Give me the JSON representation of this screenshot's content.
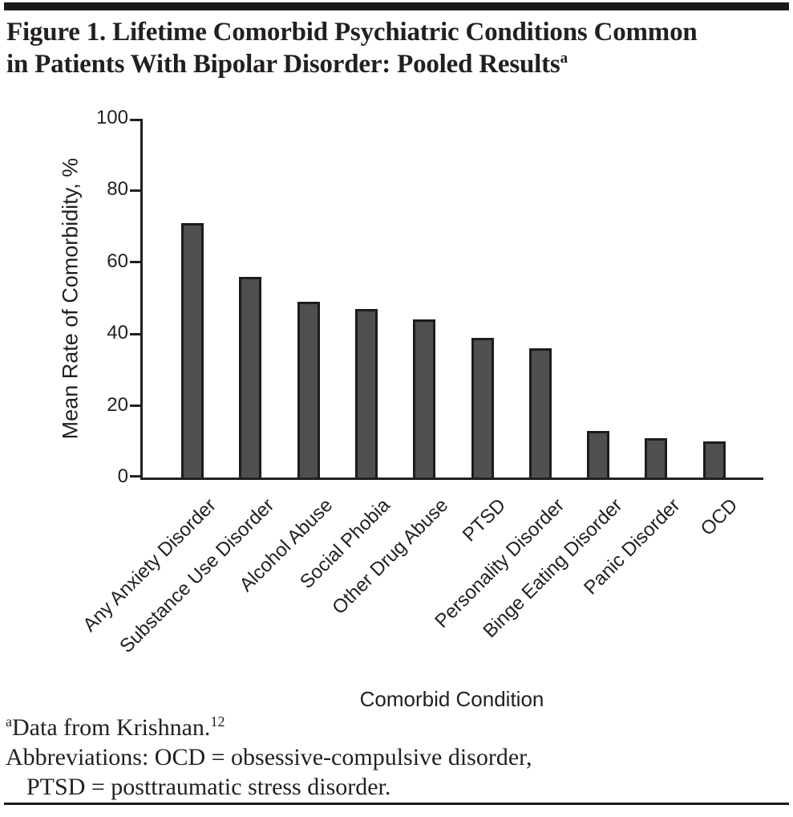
{
  "figure": {
    "title_lines": [
      "Figure 1. Lifetime Comorbid Psychiatric Conditions Common",
      "in Patients With Bipolar Disorder: Pooled Results"
    ],
    "title_superscript": "a",
    "rule_color": "#1a1a1a"
  },
  "chart_data": {
    "type": "bar",
    "title": "",
    "categories": [
      "Any Anxiety Disorder",
      "Substance Use Disorder",
      "Alcohol Abuse",
      "Social Phobia",
      "Other Drug Abuse",
      "PTSD",
      "Personality Disorder",
      "Binge Eating Disorder",
      "Panic Disorder",
      "OCD"
    ],
    "values": [
      71,
      56,
      49,
      47,
      44,
      39,
      36,
      13,
      11,
      10
    ],
    "xlabel": "Comorbid Condition",
    "ylabel": "Mean Rate of Comorbidity, %",
    "ylim": [
      0,
      100
    ],
    "yticks": [
      0,
      20,
      40,
      60,
      80,
      100
    ],
    "grid": false,
    "legend_position": "none",
    "bar_color": "#4f4f4f",
    "bar_border_color": "#1c1c1c",
    "axis_color": "#231f20"
  },
  "footnotes": {
    "lines": [
      {
        "sup_pre": "a",
        "text": "Data from Krishnan.",
        "sup_post": "12",
        "indent": false
      },
      {
        "text": "Abbreviations: OCD = obsessive-compulsive disorder,",
        "indent": false
      },
      {
        "text": "PTSD = posttraumatic stress disorder.",
        "indent": true
      }
    ]
  }
}
